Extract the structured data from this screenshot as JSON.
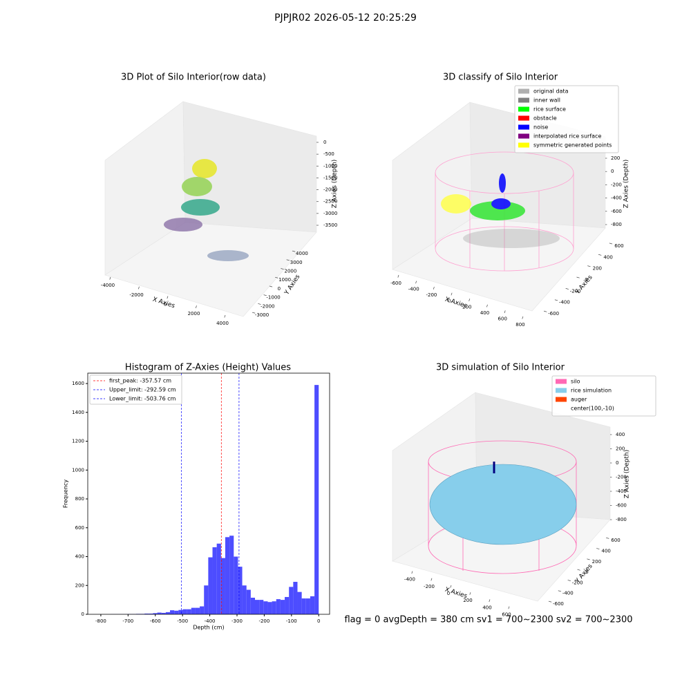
{
  "title": "PJPJR02 2026-05-12 20:25:29",
  "footer": "flag = 0     avgDepth = 380 cm  sv1 = 700~2300  sv2 = 700~2300",
  "chart_data": [
    {
      "type": "scatter3d",
      "title": "3D Plot of Silo Interior(row data)",
      "xlabel": "X Axies",
      "ylabel": "Y Axies",
      "zlabel": "Z Axies (Depth)",
      "xlim": [
        -4500,
        4500
      ],
      "xticks": [
        -4000,
        -2000,
        0,
        2000,
        4000
      ],
      "ylim": [
        -3500,
        4500
      ],
      "yticks": [
        -3000,
        -2000,
        -1000,
        0,
        1000,
        2000,
        3000,
        4000
      ],
      "zlim": [
        -3800,
        300
      ],
      "zticks": [
        0,
        -500,
        -1000,
        -1500,
        -2000,
        -2500,
        -3000,
        -3500
      ]
    },
    {
      "type": "scatter3d",
      "title": "3D classify of Silo Interior",
      "xlabel": "X Axies",
      "ylabel": "Y Axies",
      "zlabel": "Z Axies (Depth)",
      "xlim": [
        -650,
        820
      ],
      "xticks": [
        -600,
        -400,
        -200,
        0,
        200,
        400,
        600,
        800
      ],
      "ylim": [
        -700,
        700
      ],
      "yticks": [
        -600,
        -400,
        -200,
        0,
        200,
        400,
        600
      ],
      "zlim": [
        -900,
        300
      ],
      "zticks": [
        200,
        0,
        -200,
        -400,
        -600,
        -800
      ],
      "legend": [
        {
          "name": "original data",
          "color": "#b0b0b0"
        },
        {
          "name": "inner wall",
          "color": "#808080"
        },
        {
          "name": "rice surface",
          "color": "#00ff00"
        },
        {
          "name": "obstacle",
          "color": "#ff0000"
        },
        {
          "name": "noise",
          "color": "#0000ff"
        },
        {
          "name": "interpolated rice surface",
          "color": "#800080"
        },
        {
          "name": "symmetric generated points",
          "color": "#ffff00"
        }
      ]
    },
    {
      "type": "histogram",
      "title": "Histogram of Z-Axies (Height) Values",
      "xlabel": "Depth (cm)",
      "ylabel": "Frequency",
      "color": "#4d4dff",
      "bins": [
        -780,
        -764.4,
        -748.8,
        -733.2,
        -717.6,
        -702,
        -686.4,
        -670.8,
        -655.2,
        -639.6,
        -624,
        -608.4,
        -592.8,
        -577.2,
        -561.6,
        -546,
        -530.4,
        -514.8,
        -499.2,
        -483.6,
        -468,
        -452.4,
        -436.8,
        -421.2,
        -405.6,
        -390,
        -374.4,
        -358.8,
        -343.2,
        -327.6,
        -312,
        -296.4,
        -280.8,
        -265.2,
        -249.6,
        -234,
        -218.4,
        -202.8,
        -187.2,
        -171.6,
        -156,
        -140.4,
        -124.8,
        -109.2,
        -93.6,
        -78,
        -62.4,
        -46.8,
        -31.2,
        -15.6,
        0
      ],
      "values": [
        0,
        1,
        1,
        1,
        1,
        2,
        2,
        3,
        3,
        5,
        5,
        8,
        12,
        10,
        15,
        28,
        25,
        30,
        35,
        35,
        45,
        45,
        55,
        200,
        395,
        465,
        490,
        390,
        535,
        545,
        400,
        330,
        200,
        170,
        115,
        100,
        100,
        90,
        85,
        90,
        105,
        100,
        120,
        190,
        225,
        155,
        110,
        110,
        125,
        1590
      ],
      "xlim": [
        -848,
        40
      ],
      "xticks": [
        -800,
        -700,
        -600,
        -500,
        -400,
        -300,
        -200,
        -100,
        0
      ],
      "ylim": [
        0,
        1672
      ],
      "yticks": [
        0,
        200,
        400,
        600,
        800,
        1000,
        1200,
        1400,
        1600
      ],
      "lines": [
        {
          "name": "first_peak: -357.57 cm",
          "value": -357.57,
          "color": "#ff0000"
        },
        {
          "name": "Upper_limit: -292.59 cm",
          "value": -292.59,
          "color": "#0000ff"
        },
        {
          "name": "Lower_limit: -503.76 cm",
          "value": -503.76,
          "color": "#0000ff"
        }
      ]
    },
    {
      "type": "scatter3d",
      "title": "3D simulation of Silo Interior",
      "xlabel": "X Axies",
      "ylabel": "Y Axies",
      "zlabel": "Z Axies (Depth)",
      "xlim": [
        -550,
        700
      ],
      "xticks": [
        -400,
        -200,
        0,
        200,
        400,
        600
      ],
      "ylim": [
        -700,
        700
      ],
      "yticks": [
        -600,
        -400,
        -200,
        0,
        200,
        400,
        600
      ],
      "zlim": [
        -900,
        500
      ],
      "zticks": [
        400,
        200,
        0,
        -200,
        -400,
        -600,
        -800
      ],
      "legend": [
        {
          "name": "silo",
          "color": "#ff69b4"
        },
        {
          "name": "rice simulation",
          "color": "#87ceeb"
        },
        {
          "name": "auger",
          "color": "#ff4500"
        },
        {
          "name": "center(100,-10)",
          "color": null
        }
      ]
    }
  ]
}
